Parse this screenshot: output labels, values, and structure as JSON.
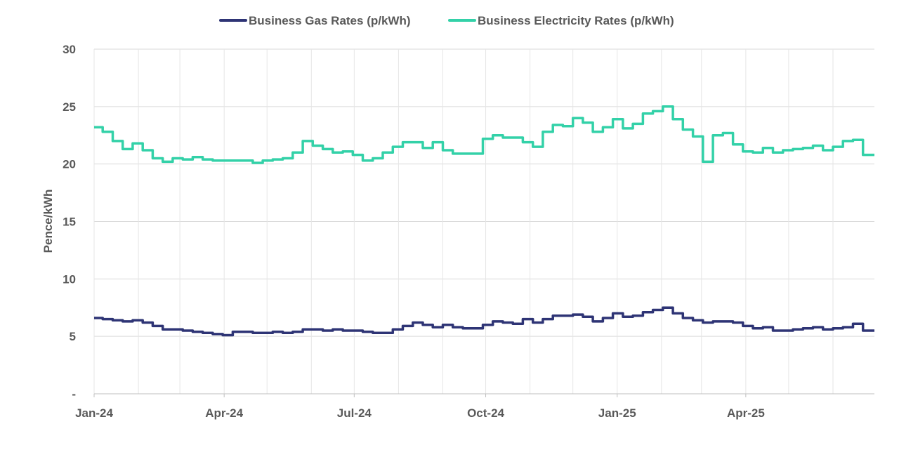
{
  "chart_data": {
    "type": "line",
    "title": "",
    "xlabel": "",
    "ylabel": "Pence/kWh",
    "ylim": [
      0,
      30
    ],
    "y_ticks": [
      {
        "value": 0,
        "label": "-"
      },
      {
        "value": 5,
        "label": "5"
      },
      {
        "value": 10,
        "label": "10"
      },
      {
        "value": 15,
        "label": "15"
      },
      {
        "value": 20,
        "label": "20"
      },
      {
        "value": 25,
        "label": "25"
      },
      {
        "value": 30,
        "label": "30"
      }
    ],
    "x_range": [
      "2024-01-01",
      "2025-06-30"
    ],
    "x_tick_labels": [
      {
        "date": "2024-01-01",
        "label": "Jan-24"
      },
      {
        "date": "2024-04-01",
        "label": "Apr-24"
      },
      {
        "date": "2024-07-01",
        "label": "Jul-24"
      },
      {
        "date": "2024-10-01",
        "label": "Oct-24"
      },
      {
        "date": "2025-01-01",
        "label": "Jan-25"
      },
      {
        "date": "2025-04-01",
        "label": "Apr-25"
      }
    ],
    "x_gridlines": [
      "2024-01-01",
      "2024-02-01",
      "2024-03-01",
      "2024-04-01",
      "2024-05-01",
      "2024-06-01",
      "2024-07-01",
      "2024-08-01",
      "2024-09-01",
      "2024-10-01",
      "2024-11-01",
      "2024-12-01",
      "2025-01-01",
      "2025-02-01",
      "2025-03-01",
      "2025-04-01",
      "2025-05-01",
      "2025-06-01"
    ],
    "grid": true,
    "legend_position": "top",
    "series": [
      {
        "name": "Business Gas Rates (p/kWh)",
        "color": "#2E3475",
        "step": true,
        "points": [
          [
            "2024-01-01",
            6.6
          ],
          [
            "2024-01-07",
            6.5
          ],
          [
            "2024-01-14",
            6.4
          ],
          [
            "2024-01-21",
            6.3
          ],
          [
            "2024-01-28",
            6.4
          ],
          [
            "2024-02-04",
            6.2
          ],
          [
            "2024-02-11",
            5.9
          ],
          [
            "2024-02-18",
            5.6
          ],
          [
            "2024-02-25",
            5.6
          ],
          [
            "2024-03-03",
            5.5
          ],
          [
            "2024-03-10",
            5.4
          ],
          [
            "2024-03-17",
            5.3
          ],
          [
            "2024-03-24",
            5.2
          ],
          [
            "2024-03-31",
            5.1
          ],
          [
            "2024-04-07",
            5.4
          ],
          [
            "2024-04-14",
            5.4
          ],
          [
            "2024-04-21",
            5.3
          ],
          [
            "2024-04-28",
            5.3
          ],
          [
            "2024-05-05",
            5.4
          ],
          [
            "2024-05-12",
            5.3
          ],
          [
            "2024-05-19",
            5.4
          ],
          [
            "2024-05-26",
            5.6
          ],
          [
            "2024-06-02",
            5.6
          ],
          [
            "2024-06-09",
            5.5
          ],
          [
            "2024-06-16",
            5.6
          ],
          [
            "2024-06-23",
            5.5
          ],
          [
            "2024-06-30",
            5.5
          ],
          [
            "2024-07-07",
            5.4
          ],
          [
            "2024-07-14",
            5.3
          ],
          [
            "2024-07-21",
            5.3
          ],
          [
            "2024-07-28",
            5.6
          ],
          [
            "2024-08-04",
            5.9
          ],
          [
            "2024-08-11",
            6.2
          ],
          [
            "2024-08-18",
            6.0
          ],
          [
            "2024-08-25",
            5.8
          ],
          [
            "2024-09-01",
            6.0
          ],
          [
            "2024-09-08",
            5.8
          ],
          [
            "2024-09-15",
            5.7
          ],
          [
            "2024-09-22",
            5.7
          ],
          [
            "2024-09-29",
            6.0
          ],
          [
            "2024-10-06",
            6.3
          ],
          [
            "2024-10-13",
            6.2
          ],
          [
            "2024-10-20",
            6.1
          ],
          [
            "2024-10-27",
            6.5
          ],
          [
            "2024-11-03",
            6.2
          ],
          [
            "2024-11-10",
            6.5
          ],
          [
            "2024-11-17",
            6.8
          ],
          [
            "2024-11-24",
            6.8
          ],
          [
            "2024-12-01",
            6.9
          ],
          [
            "2024-12-08",
            6.7
          ],
          [
            "2024-12-15",
            6.3
          ],
          [
            "2024-12-22",
            6.6
          ],
          [
            "2024-12-29",
            7.0
          ],
          [
            "2025-01-05",
            6.7
          ],
          [
            "2025-01-12",
            6.8
          ],
          [
            "2025-01-19",
            7.1
          ],
          [
            "2025-01-26",
            7.3
          ],
          [
            "2025-02-02",
            7.5
          ],
          [
            "2025-02-09",
            7.0
          ],
          [
            "2025-02-16",
            6.6
          ],
          [
            "2025-02-23",
            6.4
          ],
          [
            "2025-03-02",
            6.2
          ],
          [
            "2025-03-09",
            6.3
          ],
          [
            "2025-03-16",
            6.3
          ],
          [
            "2025-03-23",
            6.2
          ],
          [
            "2025-03-30",
            5.9
          ],
          [
            "2025-04-06",
            5.7
          ],
          [
            "2025-04-13",
            5.8
          ],
          [
            "2025-04-20",
            5.5
          ],
          [
            "2025-04-27",
            5.5
          ],
          [
            "2025-05-04",
            5.6
          ],
          [
            "2025-05-11",
            5.7
          ],
          [
            "2025-05-18",
            5.8
          ],
          [
            "2025-05-25",
            5.6
          ],
          [
            "2025-06-01",
            5.7
          ],
          [
            "2025-06-08",
            5.8
          ],
          [
            "2025-06-15",
            6.1
          ],
          [
            "2025-06-22",
            5.5
          ],
          [
            "2025-06-30",
            5.5
          ]
        ]
      },
      {
        "name": "Business Electricity Rates (p/kWh)",
        "color": "#33D1A8",
        "step": true,
        "points": [
          [
            "2024-01-01",
            23.2
          ],
          [
            "2024-01-07",
            22.8
          ],
          [
            "2024-01-14",
            22.0
          ],
          [
            "2024-01-21",
            21.3
          ],
          [
            "2024-01-28",
            21.8
          ],
          [
            "2024-02-04",
            21.2
          ],
          [
            "2024-02-11",
            20.5
          ],
          [
            "2024-02-18",
            20.2
          ],
          [
            "2024-02-25",
            20.5
          ],
          [
            "2024-03-03",
            20.4
          ],
          [
            "2024-03-10",
            20.6
          ],
          [
            "2024-03-17",
            20.4
          ],
          [
            "2024-03-24",
            20.3
          ],
          [
            "2024-03-31",
            20.3
          ],
          [
            "2024-04-07",
            20.3
          ],
          [
            "2024-04-14",
            20.3
          ],
          [
            "2024-04-21",
            20.1
          ],
          [
            "2024-04-28",
            20.3
          ],
          [
            "2024-05-05",
            20.4
          ],
          [
            "2024-05-12",
            20.5
          ],
          [
            "2024-05-19",
            21.0
          ],
          [
            "2024-05-26",
            22.0
          ],
          [
            "2024-06-02",
            21.6
          ],
          [
            "2024-06-09",
            21.3
          ],
          [
            "2024-06-16",
            21.0
          ],
          [
            "2024-06-23",
            21.1
          ],
          [
            "2024-06-30",
            20.8
          ],
          [
            "2024-07-07",
            20.3
          ],
          [
            "2024-07-14",
            20.5
          ],
          [
            "2024-07-21",
            21.0
          ],
          [
            "2024-07-28",
            21.5
          ],
          [
            "2024-08-04",
            21.9
          ],
          [
            "2024-08-11",
            21.9
          ],
          [
            "2024-08-18",
            21.4
          ],
          [
            "2024-08-25",
            21.9
          ],
          [
            "2024-09-01",
            21.2
          ],
          [
            "2024-09-08",
            20.9
          ],
          [
            "2024-09-15",
            20.9
          ],
          [
            "2024-09-22",
            20.9
          ],
          [
            "2024-09-29",
            22.2
          ],
          [
            "2024-10-06",
            22.5
          ],
          [
            "2024-10-13",
            22.3
          ],
          [
            "2024-10-20",
            22.3
          ],
          [
            "2024-10-27",
            21.9
          ],
          [
            "2024-11-03",
            21.5
          ],
          [
            "2024-11-10",
            22.8
          ],
          [
            "2024-11-17",
            23.4
          ],
          [
            "2024-11-24",
            23.3
          ],
          [
            "2024-12-01",
            24.0
          ],
          [
            "2024-12-08",
            23.6
          ],
          [
            "2024-12-15",
            22.8
          ],
          [
            "2024-12-22",
            23.2
          ],
          [
            "2024-12-29",
            23.9
          ],
          [
            "2025-01-05",
            23.1
          ],
          [
            "2025-01-12",
            23.5
          ],
          [
            "2025-01-19",
            24.4
          ],
          [
            "2025-01-26",
            24.6
          ],
          [
            "2025-02-02",
            25.0
          ],
          [
            "2025-02-09",
            23.9
          ],
          [
            "2025-02-16",
            23.0
          ],
          [
            "2025-02-23",
            22.4
          ],
          [
            "2025-03-02",
            20.2
          ],
          [
            "2025-03-09",
            22.5
          ],
          [
            "2025-03-16",
            22.7
          ],
          [
            "2025-03-23",
            21.7
          ],
          [
            "2025-03-30",
            21.1
          ],
          [
            "2025-04-06",
            21.0
          ],
          [
            "2025-04-13",
            21.4
          ],
          [
            "2025-04-20",
            21.0
          ],
          [
            "2025-04-27",
            21.2
          ],
          [
            "2025-05-04",
            21.3
          ],
          [
            "2025-05-11",
            21.4
          ],
          [
            "2025-05-18",
            21.6
          ],
          [
            "2025-05-25",
            21.2
          ],
          [
            "2025-06-01",
            21.5
          ],
          [
            "2025-06-08",
            22.0
          ],
          [
            "2025-06-15",
            22.1
          ],
          [
            "2025-06-22",
            20.8
          ],
          [
            "2025-06-30",
            20.8
          ]
        ]
      }
    ]
  }
}
